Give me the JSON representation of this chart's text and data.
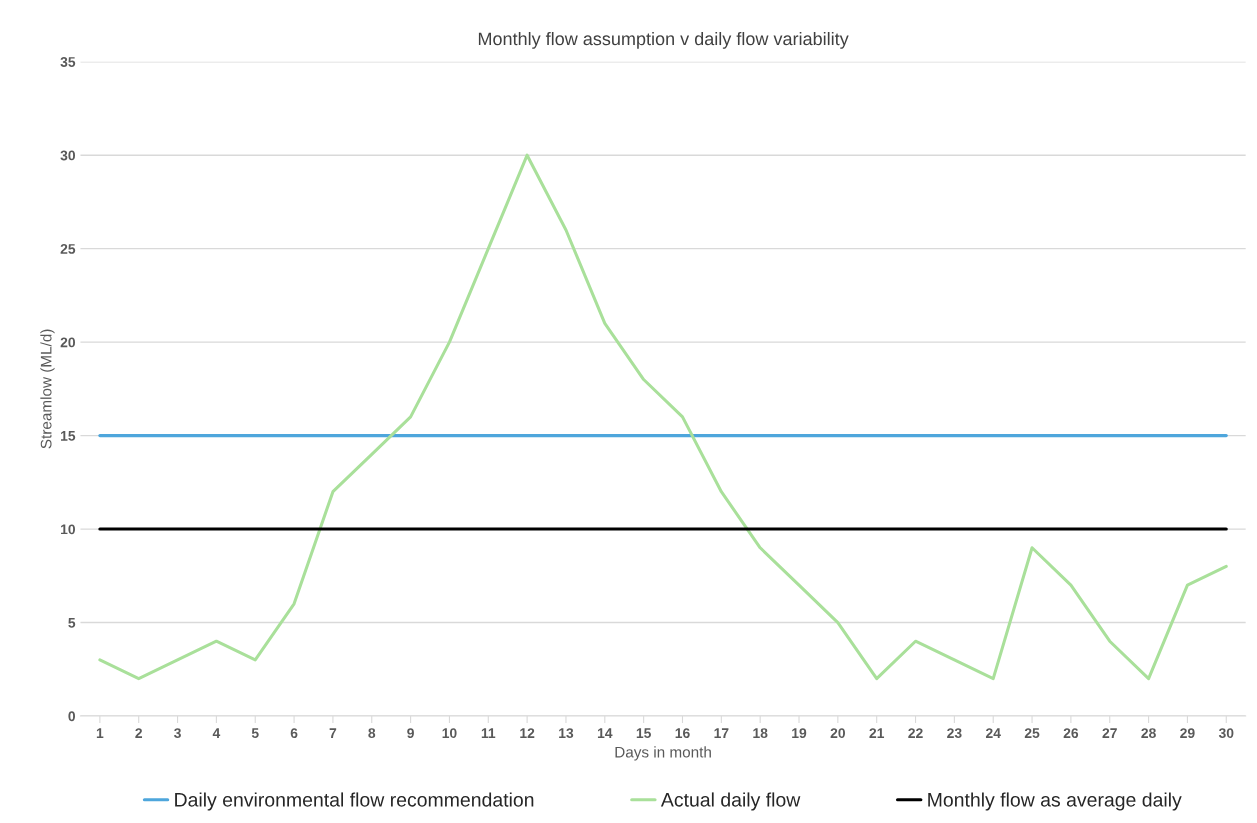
{
  "chart_data": {
    "type": "line",
    "title": "Monthly flow assumption v daily flow variability",
    "xlabel": "Days in month",
    "ylabel": "Streamlow (ML/d)",
    "categories": [
      "1",
      "2",
      "3",
      "4",
      "5",
      "6",
      "7",
      "8",
      "9",
      "10",
      "11",
      "12",
      "13",
      "14",
      "15",
      "16",
      "17",
      "18",
      "19",
      "20",
      "21",
      "22",
      "23",
      "24",
      "25",
      "26",
      "27",
      "28",
      "29",
      "30"
    ],
    "series": [
      {
        "name": "Daily environmental flow recommendation",
        "color": "#4ea6dc",
        "values": [
          15,
          15,
          15,
          15,
          15,
          15,
          15,
          15,
          15,
          15,
          15,
          15,
          15,
          15,
          15,
          15,
          15,
          15,
          15,
          15,
          15,
          15,
          15,
          15,
          15,
          15,
          15,
          15,
          15,
          15
        ]
      },
      {
        "name": "Actual daily flow",
        "color": "#a9e09a",
        "values": [
          3,
          2,
          3,
          4,
          3,
          6,
          12,
          14,
          16,
          20,
          25,
          30,
          26,
          21,
          18,
          16,
          12,
          9,
          7,
          5,
          2,
          4,
          3,
          2,
          9,
          7,
          4,
          2,
          7,
          8
        ]
      },
      {
        "name": "Monthly flow as average daily",
        "color": "#000000",
        "values": [
          10,
          10,
          10,
          10,
          10,
          10,
          10,
          10,
          10,
          10,
          10,
          10,
          10,
          10,
          10,
          10,
          10,
          10,
          10,
          10,
          10,
          10,
          10,
          10,
          10,
          10,
          10,
          10,
          10,
          10
        ]
      }
    ],
    "ylim": [
      0,
      35
    ],
    "yticks": [
      0,
      5,
      10,
      15,
      20,
      25,
      30,
      35
    ],
    "grid": "y",
    "legend": "bottom",
    "marker": "none",
    "line_style": "solid"
  }
}
